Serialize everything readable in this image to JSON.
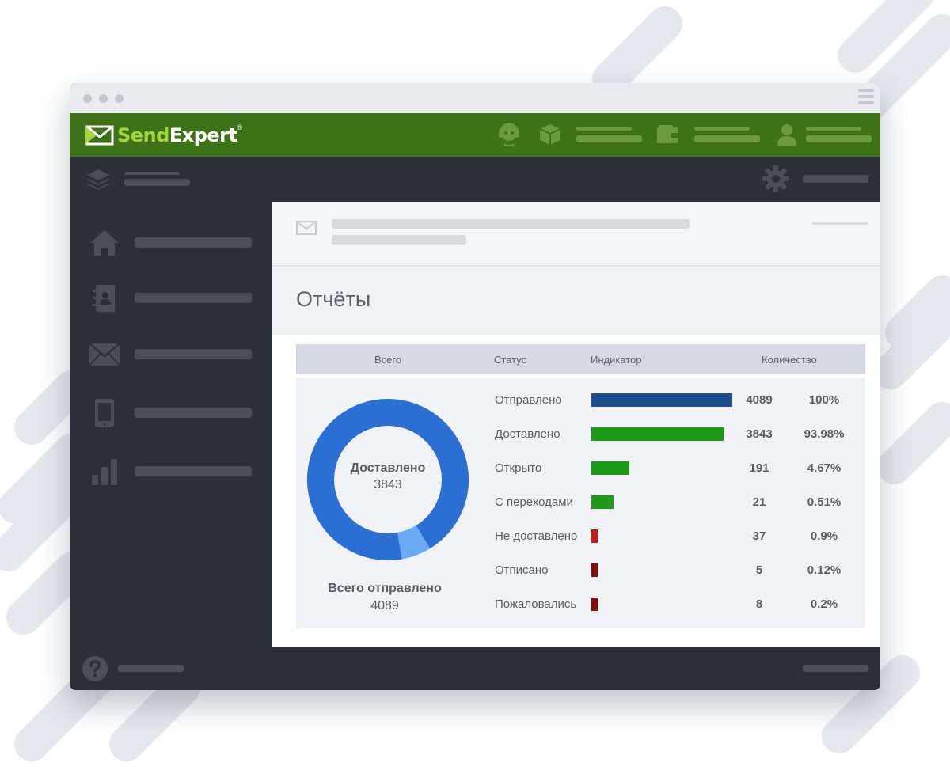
{
  "brand": {
    "name_prefix": "Send",
    "name_suffix": "Expert",
    "registered_mark": "®",
    "logo_icon": "envelope-arrow-icon"
  },
  "colors": {
    "topbar": "#3e7218",
    "logo_accent": "#a6d43a",
    "donut_main": "#2b6fd2",
    "donut_secondary": "#6aaaf5"
  },
  "topbar_icons": [
    "support-agent-icon",
    "package-box-icon",
    "wallet-icon",
    "user-icon"
  ],
  "subbar_icons": [
    "layers-icon",
    "gear-icon"
  ],
  "sidebar": {
    "items": [
      {
        "icon": "home-icon"
      },
      {
        "icon": "contacts-book-icon"
      },
      {
        "icon": "envelope-icon"
      },
      {
        "icon": "mobile-phone-icon"
      },
      {
        "icon": "bar-chart-icon"
      }
    ]
  },
  "footer_icons": [
    "help-icon"
  ],
  "page_title": "Отчёты",
  "table": {
    "columns": {
      "total": "Всего",
      "status": "Статус",
      "indicator": "Индикатор",
      "count": "Количество"
    },
    "donut": {
      "center_label": "Доставлено",
      "center_value": "3843",
      "total_label": "Всего отправлено",
      "total_value": "4089",
      "delivered_fraction": 0.9398
    },
    "rows": [
      {
        "status": "Отправлено",
        "qty": "4089",
        "pct": "100%",
        "bar_fraction": 1.0,
        "color": "#1b4e8c"
      },
      {
        "status": "Доставлено",
        "qty": "3843",
        "pct": "93.98%",
        "bar_fraction": 0.9398,
        "color": "#1d9a17"
      },
      {
        "status": "Открыто",
        "qty": "191",
        "pct": "4.67%",
        "bar_fraction": 0.27,
        "color": "#1d9a17"
      },
      {
        "status": "С переходами",
        "qty": "21",
        "pct": "0.51%",
        "bar_fraction": 0.16,
        "color": "#1d9a17"
      },
      {
        "status": "Не доставлено",
        "qty": "37",
        "pct": "0.9%",
        "bar_fraction": 0.045,
        "color": "#d11414"
      },
      {
        "status": "Отписано",
        "qty": "5",
        "pct": "0.12%",
        "bar_fraction": 0.045,
        "color": "#8a0b0b"
      },
      {
        "status": "Пожаловались",
        "qty": "8",
        "pct": "0.2%",
        "bar_fraction": 0.045,
        "color": "#8a0b0b"
      }
    ]
  }
}
